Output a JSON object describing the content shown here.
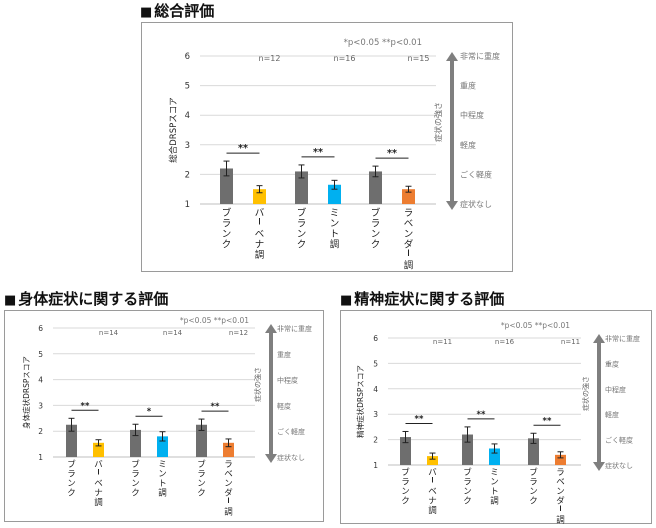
{
  "marker": "■",
  "colors": {
    "blank": "#6e6e6e",
    "verbena": "#ffc000",
    "mint": "#00b0f0",
    "lavender": "#ed7d31",
    "gridline": "#d9d9d9",
    "arrow": "#7f7f7f"
  },
  "charts": [
    {
      "heading": "総合評価",
      "significance_note": "*p<0.05 **p<0.01",
      "strength_label": "症状の強さ",
      "severity_levels": [
        "非常に重度",
        "重度",
        "中程度",
        "軽度",
        "ごく軽度",
        "症状なし"
      ]
    },
    {
      "heading": "身体症状に関する評価",
      "significance_note": "*p<0.05 **p<0.01",
      "strength_label": "症状の強さ",
      "severity_levels": [
        "非常に重度",
        "重度",
        "中程度",
        "軽度",
        "ごく軽度",
        "症状なし"
      ]
    },
    {
      "heading": "精神症状に関する評価",
      "significance_note": "*p<0.05 **p<0.01",
      "strength_label": "症状の強さ",
      "severity_levels": [
        "非常に重度",
        "重度",
        "中程度",
        "軽度",
        "ごく軽度",
        "症状なし"
      ]
    }
  ],
  "chart_data": [
    {
      "type": "bar",
      "title": "総合評価",
      "ylabel": "総合DRSPスコア",
      "ylim": [
        1,
        6
      ],
      "yticks": [
        1,
        2,
        3,
        4,
        5,
        6
      ],
      "grid": true,
      "groups": [
        {
          "n": "n=12",
          "significance": "**",
          "bars": [
            {
              "label": "ブランク",
              "value": 2.2,
              "err": 0.25,
              "color": "blank"
            },
            {
              "label": "バーベナ調",
              "value": 1.5,
              "err": 0.12,
              "color": "verbena"
            }
          ]
        },
        {
          "n": "n=16",
          "significance": "**",
          "bars": [
            {
              "label": "ブランク",
              "value": 2.1,
              "err": 0.22,
              "color": "blank"
            },
            {
              "label": "ミント調",
              "value": 1.65,
              "err": 0.15,
              "color": "mint"
            }
          ]
        },
        {
          "n": "n=15",
          "significance": "**",
          "bars": [
            {
              "label": "ブランク",
              "value": 2.1,
              "err": 0.18,
              "color": "blank"
            },
            {
              "label": "ラベンダー調",
              "value": 1.5,
              "err": 0.1,
              "color": "lavender"
            }
          ]
        }
      ]
    },
    {
      "type": "bar",
      "title": "身体症状に関する評価",
      "ylabel": "身体症状DRSPスコア",
      "ylim": [
        1,
        6
      ],
      "yticks": [
        1,
        2,
        3,
        4,
        5,
        6
      ],
      "grid": true,
      "groups": [
        {
          "n": "n=14",
          "significance": "**",
          "bars": [
            {
              "label": "ブランク",
              "value": 2.25,
              "err": 0.25,
              "color": "blank"
            },
            {
              "label": "バーベナ調",
              "value": 1.55,
              "err": 0.12,
              "color": "verbena"
            }
          ]
        },
        {
          "n": "n=14",
          "significance": "*",
          "bars": [
            {
              "label": "ブランク",
              "value": 2.05,
              "err": 0.22,
              "color": "blank"
            },
            {
              "label": "ミント調",
              "value": 1.8,
              "err": 0.18,
              "color": "mint"
            }
          ]
        },
        {
          "n": "n=12",
          "significance": "**",
          "bars": [
            {
              "label": "ブランク",
              "value": 2.25,
              "err": 0.22,
              "color": "blank"
            },
            {
              "label": "ラベンダー調",
              "value": 1.55,
              "err": 0.15,
              "color": "lavender"
            }
          ]
        }
      ]
    },
    {
      "type": "bar",
      "title": "精神症状に関する評価",
      "ylabel": "精神症状DRSPスコア",
      "ylim": [
        1,
        6
      ],
      "yticks": [
        1,
        2,
        3,
        4,
        5,
        6
      ],
      "grid": true,
      "groups": [
        {
          "n": "n=11",
          "significance": "**",
          "bars": [
            {
              "label": "ブランク",
              "value": 2.1,
              "err": 0.22,
              "color": "blank"
            },
            {
              "label": "バーベナ調",
              "value": 1.35,
              "err": 0.12,
              "color": "verbena"
            }
          ]
        },
        {
          "n": "n=16",
          "significance": "**",
          "bars": [
            {
              "label": "ブランク",
              "value": 2.2,
              "err": 0.3,
              "color": "blank"
            },
            {
              "label": "ミント調",
              "value": 1.65,
              "err": 0.18,
              "color": "mint"
            }
          ]
        },
        {
          "n": "n=11",
          "significance": "**",
          "bars": [
            {
              "label": "ブランク",
              "value": 2.05,
              "err": 0.2,
              "color": "blank"
            },
            {
              "label": "ラベンダー調",
              "value": 1.4,
              "err": 0.12,
              "color": "lavender"
            }
          ]
        }
      ]
    }
  ]
}
